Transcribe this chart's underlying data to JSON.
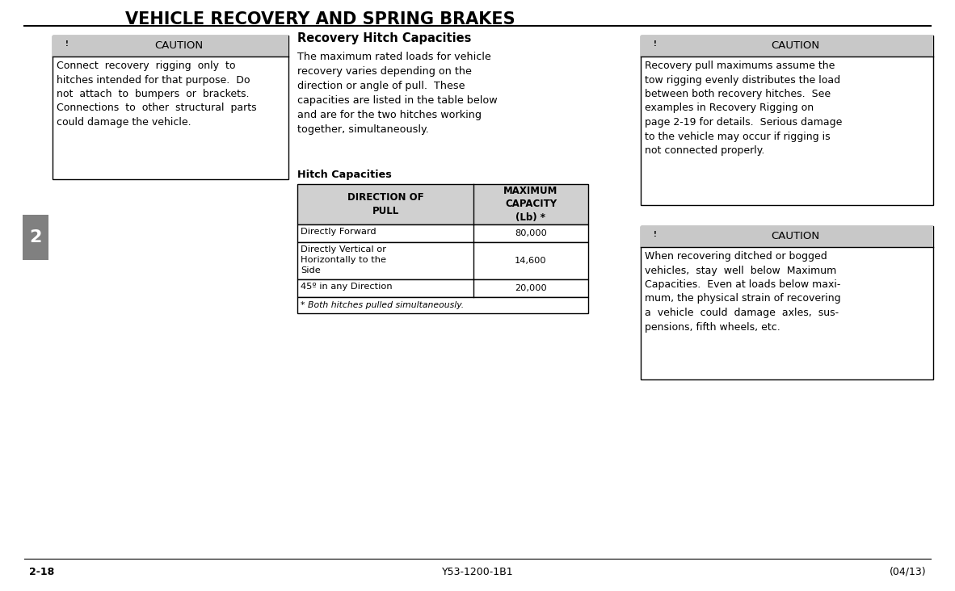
{
  "title": "VEHICLE RECOVERY AND SPRING BRAKES",
  "page_bg": "#ffffff",
  "section_num": "2",
  "section_bg": "#808080",
  "section_fg": "#ffffff",
  "caution1_header": "CAUTION",
  "caution1_body": "Connect  recovery  rigging  only  to\nhitches intended for that purpose.  Do\nnot  attach  to  bumpers  or  brackets.\nConnections  to  other  structural  parts\ncould damage the vehicle.",
  "section_title": "Recovery Hitch Capacities",
  "body_text": "The maximum rated loads for vehicle\nrecovery varies depending on the\ndirection or angle of pull.  These\ncapacities are listed in the table below\nand are for the two hitches working\ntogether, simultaneously.",
  "table_subtitle": "Hitch Capacities",
  "table_header1": "DIRECTION OF\nPULL",
  "table_header2": "MAXIMUM\nCAPACITY\n(Lb) *",
  "table_rows": [
    [
      "Directly Forward",
      "80,000"
    ],
    [
      "Directly Vertical or\nHorizontally to the\nSide",
      "14,600"
    ],
    [
      "45º in any Direction",
      "20,000"
    ],
    [
      "* Both hitches pulled simultaneously.",
      ""
    ]
  ],
  "table_header_bg": "#d0d0d0",
  "table_border": "#000000",
  "caution2_header": "CAUTION",
  "caution2_body": "Recovery pull maximums assume the\ntow rigging evenly distributes the load\nbetween both recovery hitches.  See\nexamples in Recovery Rigging on\npage 2-19 for details.  Serious damage\nto the vehicle may occur if rigging is\nnot connected properly.",
  "caution3_header": "CAUTION",
  "caution3_body": "When recovering ditched or bogged\nvehicles,  stay  well  below  Maximum\nCapacities.  Even at loads below maxi-\nmum, the physical strain of recovering\na  vehicle  could  damage  axles,  sus-\npensions, fifth wheels, etc.",
  "footer_left": "2-18",
  "footer_center": "Y53-1200-1B1",
  "footer_right": "(04/13)",
  "caution_header_bg": "#c8c8c8",
  "caution_border": "#000000"
}
